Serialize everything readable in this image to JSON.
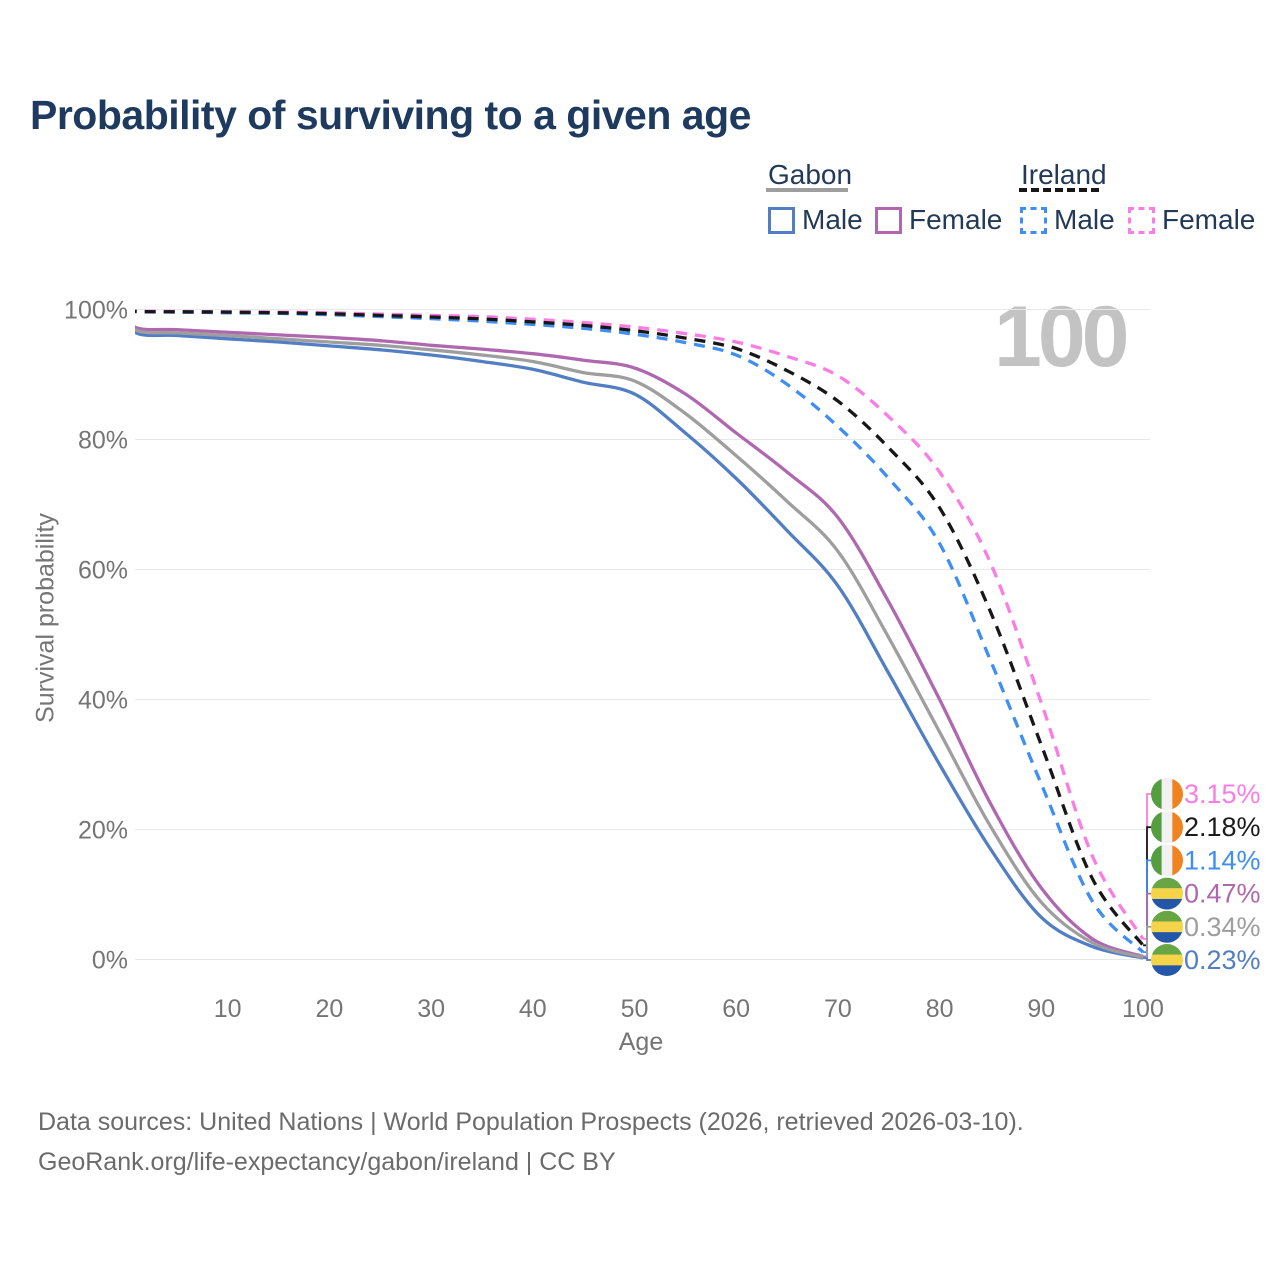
{
  "title": "Probability of surviving to a given age",
  "watermark": "100",
  "legend": {
    "gabon": {
      "label": "Gabon",
      "male_label": "Male",
      "female_label": "Female"
    },
    "ireland": {
      "label": "Ireland",
      "male_label": "Male",
      "female_label": "Female"
    }
  },
  "y_axis": {
    "label": "Survival probability"
  },
  "x_axis": {
    "label": "Age"
  },
  "footer": {
    "line1": "Data sources: United Nations | World Population Prospects (2026, retrieved 2026-03-10).",
    "line2": "GeoRank.org/life-expectancy/gabon/ireland | CC BY"
  },
  "series_colors": {
    "gabon_male": "#527ec4",
    "gabon_female": "#af68af",
    "gabon_both": "#9e9e9e",
    "ireland_male": "#3e8ef4",
    "ireland_female": "#fb7de4",
    "ireland_both": "#171717"
  },
  "chart_data": {
    "type": "line",
    "title": "Probability of surviving to a given age",
    "xlabel": "Age",
    "ylabel": "Survival probability",
    "xlim": [
      0,
      100
    ],
    "ylim": [
      0,
      100
    ],
    "grid": "horizontal",
    "legend_position": "top-right",
    "x_ticks": [
      {
        "value": 10,
        "label": "10"
      },
      {
        "value": 20,
        "label": "20"
      },
      {
        "value": 30,
        "label": "30"
      },
      {
        "value": 40,
        "label": "40"
      },
      {
        "value": 50,
        "label": "50"
      },
      {
        "value": 60,
        "label": "60"
      },
      {
        "value": 70,
        "label": "70"
      },
      {
        "value": 80,
        "label": "80"
      },
      {
        "value": 90,
        "label": "90"
      },
      {
        "value": 100,
        "label": "100"
      }
    ],
    "y_ticks": [
      {
        "value": 0,
        "label": "0%"
      },
      {
        "value": 20,
        "label": "20%"
      },
      {
        "value": 40,
        "label": "40%"
      },
      {
        "value": 60,
        "label": "60%"
      },
      {
        "value": 80,
        "label": "80%"
      },
      {
        "value": 100,
        "label": "100%"
      }
    ],
    "ages": [
      0,
      1,
      5,
      10,
      15,
      20,
      25,
      30,
      35,
      40,
      45,
      50,
      55,
      60,
      65,
      70,
      75,
      80,
      85,
      90,
      95,
      100
    ],
    "series": [
      {
        "name": "Gabon Male",
        "country": "Gabon",
        "sex": "Male",
        "color": "#527ec4",
        "dashed": false,
        "values": [
          100,
          96.4,
          96.0,
          95.5,
          95.0,
          94.4,
          93.8,
          93.0,
          92.0,
          90.8,
          88.8,
          87.0,
          81.0,
          74.0,
          66.0,
          57.5,
          44.0,
          30.0,
          17.0,
          6.5,
          2.0,
          0.23
        ]
      },
      {
        "name": "Gabon Female",
        "country": "Gabon",
        "sex": "Female",
        "color": "#af68af",
        "dashed": false,
        "values": [
          100,
          97.2,
          96.9,
          96.5,
          96.1,
          95.7,
          95.2,
          94.5,
          93.9,
          93.2,
          92.2,
          91.0,
          87.0,
          81.0,
          75.0,
          68.0,
          55.0,
          40.0,
          24.0,
          11.0,
          3.2,
          0.47
        ]
      },
      {
        "name": "Gabon (both sexes)",
        "country": "Gabon",
        "sex": "Both",
        "color": "#9e9e9e",
        "dashed": false,
        "values": [
          100,
          96.8,
          96.4,
          96.0,
          95.5,
          95.0,
          94.5,
          93.8,
          93.0,
          92.0,
          90.3,
          89.0,
          84.0,
          77.5,
          70.5,
          62.8,
          49.5,
          35.0,
          20.5,
          8.8,
          2.6,
          0.34
        ]
      },
      {
        "name": "Ireland Male",
        "country": "Ireland",
        "sex": "Male",
        "color": "#3e8ef4",
        "dashed": true,
        "values": [
          100,
          99.65,
          99.6,
          99.5,
          99.4,
          99.2,
          98.9,
          98.6,
          98.2,
          97.7,
          97.1,
          96.2,
          94.9,
          93.0,
          88.5,
          82.0,
          74.0,
          64.0,
          46.0,
          27.0,
          9.0,
          1.14
        ]
      },
      {
        "name": "Ireland Female",
        "country": "Ireland",
        "sex": "Female",
        "color": "#fb7de4",
        "dashed": true,
        "values": [
          100,
          99.75,
          99.7,
          99.65,
          99.6,
          99.5,
          99.3,
          99.1,
          98.9,
          98.5,
          98.0,
          97.3,
          96.3,
          95.0,
          92.8,
          89.8,
          83.5,
          75.0,
          61.0,
          39.5,
          16.0,
          3.15
        ]
      },
      {
        "name": "Ireland (both sexes)",
        "country": "Ireland",
        "sex": "Both",
        "color": "#171717",
        "dashed": true,
        "values": [
          100,
          99.7,
          99.65,
          99.6,
          99.5,
          99.35,
          99.1,
          98.85,
          98.55,
          98.1,
          97.55,
          96.75,
          95.6,
          94.0,
          90.6,
          85.9,
          78.7,
          69.5,
          53.5,
          33.0,
          12.5,
          2.18
        ]
      }
    ],
    "end_labels": [
      {
        "text": "3.15%",
        "color": "#fb7de4",
        "flag": "ireland",
        "series": 4
      },
      {
        "text": "2.18%",
        "color": "#1b1b1b",
        "flag": "ireland",
        "series": 5
      },
      {
        "text": "1.14%",
        "color": "#3e8ef4",
        "flag": "ireland",
        "series": 3
      },
      {
        "text": "0.47%",
        "color": "#af68af",
        "flag": "gabon",
        "series": 1
      },
      {
        "text": "0.34%",
        "color": "#9e9e9e",
        "flag": "gabon",
        "series": 2
      },
      {
        "text": "0.23%",
        "color": "#527ec4",
        "flag": "gabon",
        "series": 0
      }
    ],
    "flag_colors": {
      "ireland": [
        "#559e3f",
        "#f1f1f1",
        "#f0831f"
      ],
      "gabon": [
        "#68a545",
        "#f6d44a",
        "#2457a8"
      ]
    }
  }
}
